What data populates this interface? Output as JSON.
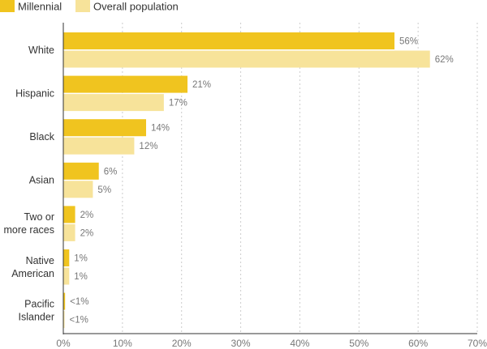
{
  "chart_data": {
    "type": "bar",
    "orientation": "horizontal",
    "categories": [
      [
        "White"
      ],
      [
        "Hispanic"
      ],
      [
        "Black"
      ],
      [
        "Asian"
      ],
      [
        "Two or",
        "more races"
      ],
      [
        "Native",
        "American"
      ],
      [
        "Pacific",
        "Islander"
      ]
    ],
    "series": [
      {
        "name": "Millennial",
        "color": "#F0C41F",
        "values": [
          56,
          21,
          14,
          6,
          2,
          1,
          0.3
        ],
        "labels": [
          "56%",
          "21%",
          "14%",
          "6%",
          "2%",
          "1%",
          "<1%"
        ]
      },
      {
        "name": "Overall population",
        "color": "#F7E39A",
        "values": [
          62,
          17,
          12,
          5,
          2,
          1,
          0.2
        ],
        "labels": [
          "62%",
          "17%",
          "12%",
          "5%",
          "2%",
          "1%",
          "<1%"
        ]
      }
    ],
    "xlim": [
      0,
      70
    ],
    "x_ticks": [
      0,
      10,
      20,
      30,
      40,
      50,
      60,
      70
    ],
    "x_tick_labels": [
      "0%",
      "10%",
      "20%",
      "30%",
      "40%",
      "50%",
      "60%",
      "70%"
    ],
    "grid": "vertical dotted",
    "legend": "top-left"
  }
}
